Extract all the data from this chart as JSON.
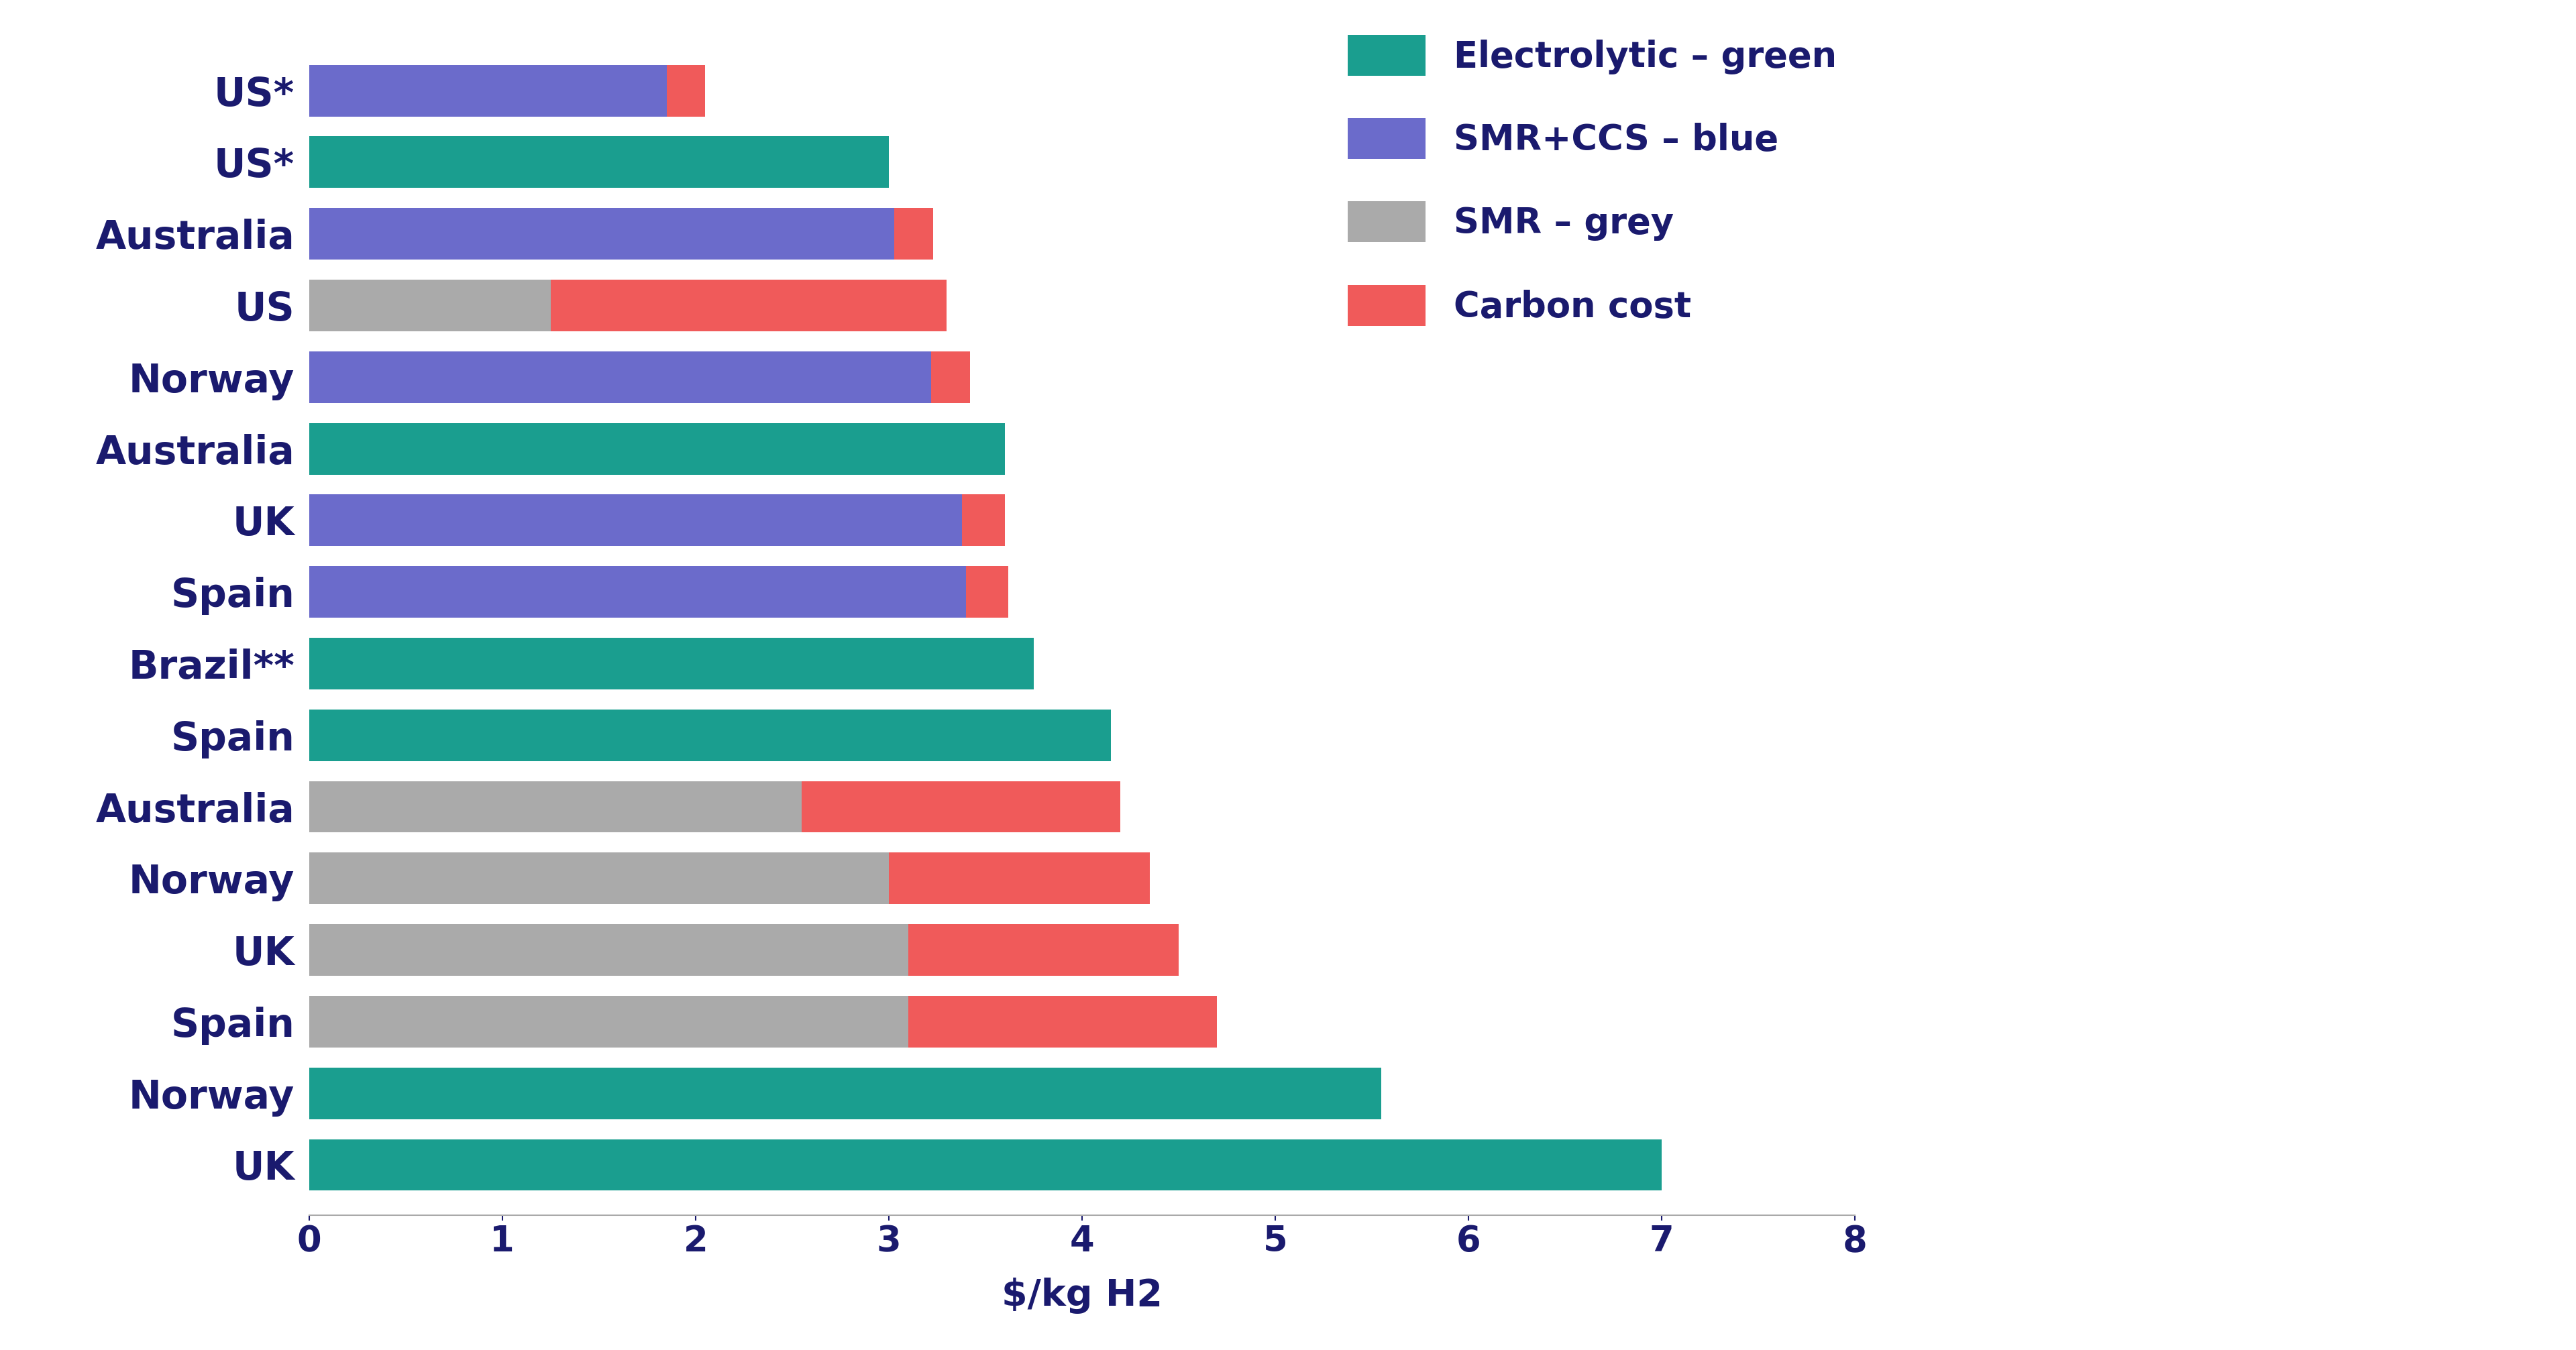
{
  "xlabel": "$/kg H2",
  "xlim": [
    0,
    8
  ],
  "xticks": [
    0,
    1,
    2,
    3,
    4,
    5,
    6,
    7,
    8
  ],
  "background_color": "#ffffff",
  "colors": {
    "green": "#1a9e8f",
    "blue": "#6b6bcb",
    "grey": "#aaaaaa",
    "red": "#f05a5a"
  },
  "legend_labels": [
    "Electrolytic – green",
    "SMR+CCS – blue",
    "SMR – grey",
    "Carbon cost"
  ],
  "legend_colors": [
    "#1a9e8f",
    "#6b6bcb",
    "#aaaaaa",
    "#f05a5a"
  ],
  "bars": [
    {
      "label": "US*",
      "type": "blue",
      "base": 1.85,
      "carbon": 0.2
    },
    {
      "label": "US*",
      "type": "green",
      "base": 3.0,
      "carbon": 0.0
    },
    {
      "label": "Australia",
      "type": "blue",
      "base": 3.03,
      "carbon": 0.2
    },
    {
      "label": "US",
      "type": "grey",
      "base": 1.25,
      "carbon": 2.05
    },
    {
      "label": "Norway",
      "type": "blue",
      "base": 3.22,
      "carbon": 0.2
    },
    {
      "label": "Australia",
      "type": "green",
      "base": 3.6,
      "carbon": 0.0
    },
    {
      "label": "UK",
      "type": "blue",
      "base": 3.38,
      "carbon": 0.22
    },
    {
      "label": "Spain",
      "type": "blue",
      "base": 3.4,
      "carbon": 0.22
    },
    {
      "label": "Brazil**",
      "type": "green",
      "base": 3.75,
      "carbon": 0.0
    },
    {
      "label": "Spain",
      "type": "green",
      "base": 4.15,
      "carbon": 0.0
    },
    {
      "label": "Australia",
      "type": "grey",
      "base": 2.55,
      "carbon": 1.65
    },
    {
      "label": "Norway",
      "type": "grey",
      "base": 3.0,
      "carbon": 1.35
    },
    {
      "label": "UK",
      "type": "grey",
      "base": 3.1,
      "carbon": 1.4
    },
    {
      "label": "Spain",
      "type": "grey",
      "base": 3.1,
      "carbon": 1.6
    },
    {
      "label": "Norway",
      "type": "green",
      "base": 5.55,
      "carbon": 0.0
    },
    {
      "label": "UK",
      "type": "green",
      "base": 7.0,
      "carbon": 0.0
    }
  ],
  "label_color": "#1a1a6e",
  "tick_color": "#1a1a6e",
  "label_fontsize": 42,
  "tick_fontsize": 38,
  "legend_fontsize": 38,
  "xlabel_fontsize": 40,
  "bar_height": 0.72
}
